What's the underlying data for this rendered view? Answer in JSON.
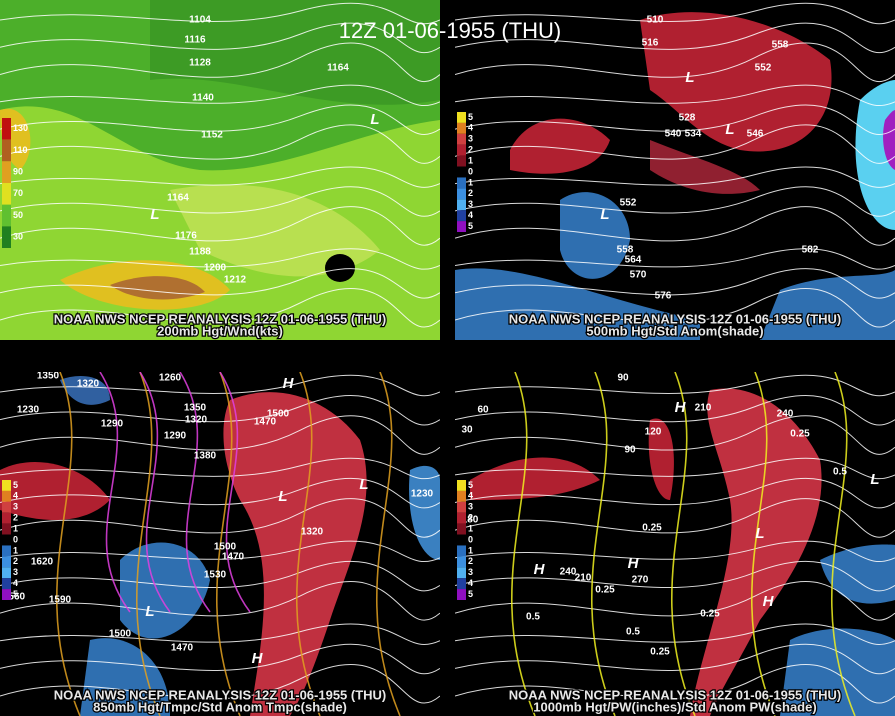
{
  "title": "12Z 01-06-1955 (THU)",
  "panels": [
    {
      "caption": "NOAA NWS NCEP REANALYSIS 12Z 01-06-1955 (THU)",
      "subtitle": "200mb Hgt/Wnd(kts)",
      "legend": [
        "130",
        "110",
        "90",
        "70",
        "50",
        "30"
      ],
      "labels": [
        "1104",
        "1116",
        "1128",
        "1140",
        "1152",
        "1164",
        "1176",
        "1188",
        "1200",
        "1212",
        "1164",
        "L",
        "L"
      ]
    },
    {
      "caption": "NOAA NWS NCEP REANALYSIS 12Z 01-06-1955 (THU)",
      "subtitle": "500mb Hgt/Std Anom(shade)",
      "legend": [
        "5",
        "4",
        "3",
        "2",
        "1",
        "0",
        "1",
        "2",
        "3",
        "4",
        "5"
      ],
      "labels": [
        "510",
        "516",
        "528",
        "540",
        "534",
        "546",
        "552",
        "558",
        "552",
        "558",
        "564",
        "570",
        "576",
        "582",
        "L",
        "L",
        "L"
      ]
    },
    {
      "caption": "NOAA NWS NCEP REANALYSIS 12Z 01-06-1955 (THU)",
      "subtitle": "850mb Hgt/Tmpc/Std Anom Tmpc(shade)",
      "legend": [
        "5",
        "4",
        "3",
        "2",
        "1",
        "0",
        "1",
        "2",
        "3",
        "4",
        "5"
      ],
      "labels": [
        "1350",
        "1320",
        "1230",
        "1290",
        "1260",
        "1350",
        "1320",
        "1290",
        "1380",
        "1470",
        "1500",
        "1320",
        "1230",
        "1470",
        "1500",
        "1530",
        "1620",
        "1590",
        "1560",
        "1500",
        "1470",
        "H",
        "L",
        "L",
        "H",
        "L"
      ]
    },
    {
      "caption": "NOAA NWS NCEP REANALYSIS 12Z 01-06-1955 (THU)",
      "subtitle": "1000mb Hgt/PW(inches)/Std Anom PW(shade)",
      "legend": [
        "5",
        "4",
        "3",
        "2",
        "1",
        "0",
        "1",
        "2",
        "3",
        "4",
        "5"
      ],
      "labels": [
        "90",
        "60",
        "30",
        "210",
        "120",
        "240",
        "90",
        "180",
        "0.25",
        "0.25",
        "0.5",
        "0.5",
        "0.5",
        "0.25",
        "240",
        "210",
        "270",
        "0.25",
        "0.25",
        "H",
        "H",
        "L",
        "L",
        "H",
        "H"
      ]
    }
  ]
}
